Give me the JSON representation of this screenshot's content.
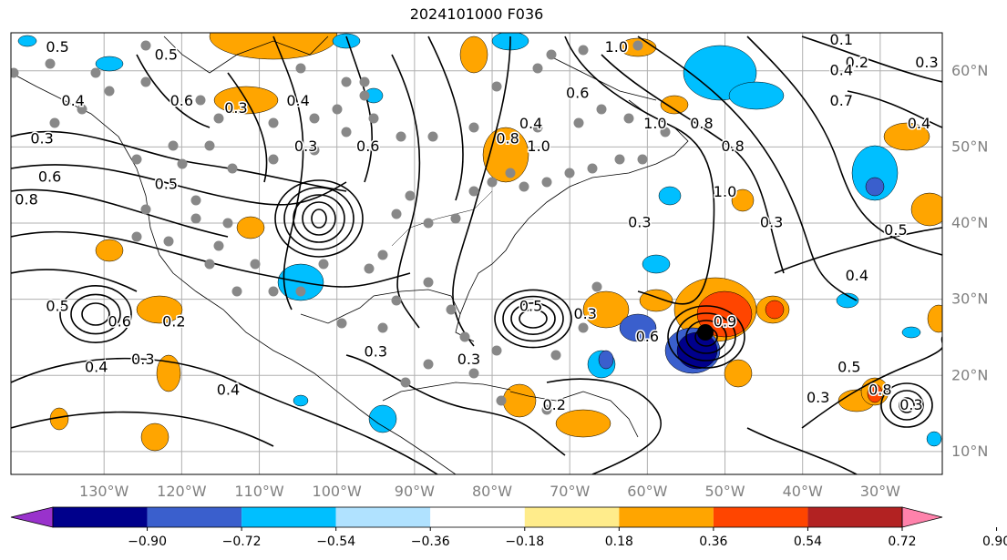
{
  "title": "2024101000 F036",
  "map": {
    "lon_labels": [
      {
        "lon": -130,
        "text": "130°W"
      },
      {
        "lon": -120,
        "text": "120°W"
      },
      {
        "lon": -110,
        "text": "110°W"
      },
      {
        "lon": -100,
        "text": "100°W"
      },
      {
        "lon": -90,
        "text": "90°W"
      },
      {
        "lon": -80,
        "text": "80°W"
      },
      {
        "lon": -70,
        "text": "70°W"
      },
      {
        "lon": -60,
        "text": "60°W"
      },
      {
        "lon": -50,
        "text": "50°W"
      },
      {
        "lon": -40,
        "text": "40°W"
      },
      {
        "lon": -30,
        "text": "30°W"
      }
    ],
    "lat_labels": [
      {
        "lat": 60,
        "text": "60°N"
      },
      {
        "lat": 50,
        "text": "50°N"
      },
      {
        "lat": 40,
        "text": "40°N"
      },
      {
        "lat": 30,
        "text": "30°N"
      },
      {
        "lat": 20,
        "text": "20°N"
      },
      {
        "lat": 10,
        "text": "10°N"
      }
    ],
    "extent": {
      "lon_min": -142,
      "lon_max": -22,
      "lat_min": 7,
      "lat_max": 65
    }
  },
  "colorbar": {
    "ticks": [
      "−0.90",
      "−0.72",
      "−0.54",
      "−0.36",
      "−0.18",
      "0.18",
      "0.36",
      "0.54",
      "0.72",
      "0.90"
    ],
    "colors": [
      "#9932cc",
      "#00008b",
      "#3a5fcd",
      "#00bfff",
      "#b0e2ff",
      "#ffffff",
      "#ffec8b",
      "#ffa500",
      "#ff4500",
      "#b22222",
      "#ff82ab"
    ]
  },
  "contour_labels": [
    {
      "text": "0.5",
      "lon": -136,
      "lat": 63
    },
    {
      "text": "0.5",
      "lon": -122,
      "lat": 62
    },
    {
      "text": "0.6",
      "lon": -120,
      "lat": 56
    },
    {
      "text": "0.4",
      "lon": -134,
      "lat": 56
    },
    {
      "text": "0.3",
      "lon": -138,
      "lat": 51
    },
    {
      "text": "0.6",
      "lon": -137,
      "lat": 46
    },
    {
      "text": "0.5",
      "lon": -122,
      "lat": 45
    },
    {
      "text": "0.8",
      "lon": -140,
      "lat": 43
    },
    {
      "text": "0.3",
      "lon": -113,
      "lat": 55
    },
    {
      "text": "0.4",
      "lon": -105,
      "lat": 56
    },
    {
      "text": "0.3",
      "lon": -104,
      "lat": 50
    },
    {
      "text": "0.6",
      "lon": -96,
      "lat": 50
    },
    {
      "text": "1.0",
      "lon": -64,
      "lat": 63
    },
    {
      "text": "0.6",
      "lon": -69,
      "lat": 57
    },
    {
      "text": "0.4",
      "lon": -75,
      "lat": 53
    },
    {
      "text": "0.8",
      "lon": -78,
      "lat": 51
    },
    {
      "text": "1.0",
      "lon": -74,
      "lat": 50
    },
    {
      "text": "1.0",
      "lon": -59,
      "lat": 53
    },
    {
      "text": "0.8",
      "lon": -53,
      "lat": 53
    },
    {
      "text": "0.8",
      "lon": -49,
      "lat": 50
    },
    {
      "text": "1.0",
      "lon": -50,
      "lat": 44
    },
    {
      "text": "0.3",
      "lon": -44,
      "lat": 40
    },
    {
      "text": "0.3",
      "lon": -61,
      "lat": 40
    },
    {
      "text": "0.2",
      "lon": -33,
      "lat": 61
    },
    {
      "text": "0.3",
      "lon": -24,
      "lat": 61
    },
    {
      "text": "0.1",
      "lon": -35,
      "lat": 64
    },
    {
      "text": "0.4",
      "lon": -35,
      "lat": 60
    },
    {
      "text": "0.7",
      "lon": -35,
      "lat": 56
    },
    {
      "text": "0.4",
      "lon": -25,
      "lat": 53
    },
    {
      "text": "0.5",
      "lon": -28,
      "lat": 39
    },
    {
      "text": "0.4",
      "lon": -33,
      "lat": 33
    },
    {
      "text": "0.5",
      "lon": -136,
      "lat": 29
    },
    {
      "text": "0.2",
      "lon": -121,
      "lat": 27
    },
    {
      "text": "0.6",
      "lon": -128,
      "lat": 27
    },
    {
      "text": "0.4",
      "lon": -131,
      "lat": 21
    },
    {
      "text": "0.3",
      "lon": -125,
      "lat": 22
    },
    {
      "text": "0.4",
      "lon": -114,
      "lat": 18
    },
    {
      "text": "0.3",
      "lon": -95,
      "lat": 23
    },
    {
      "text": "0.5",
      "lon": -75,
      "lat": 29
    },
    {
      "text": "0.3",
      "lon": -68,
      "lat": 28
    },
    {
      "text": "0.6",
      "lon": -60,
      "lat": 25
    },
    {
      "text": "0.9",
      "lon": -50,
      "lat": 27
    },
    {
      "text": "0.2",
      "lon": -72,
      "lat": 16
    },
    {
      "text": "0.3",
      "lon": -83,
      "lat": 22
    },
    {
      "text": "0.5",
      "lon": -34,
      "lat": 21
    },
    {
      "text": "0.3",
      "lon": -38,
      "lat": 17
    },
    {
      "text": "0.8",
      "lon": -30,
      "lat": 18
    },
    {
      "text": "0.3",
      "lon": -26,
      "lat": 16
    }
  ]
}
